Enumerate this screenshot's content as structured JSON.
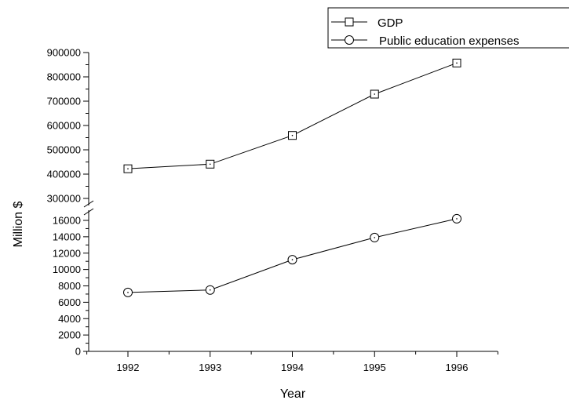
{
  "chart_data": {
    "type": "line",
    "xlabel": "Year",
    "ylabel": "Million $",
    "x": [
      1992,
      1993,
      1994,
      1995,
      1996
    ],
    "x_tick_labels": [
      "1992",
      "1993",
      "1994",
      "1995",
      "1996"
    ],
    "y_axis_break": true,
    "y_upper_segment": {
      "ylim": [
        300000,
        900000
      ],
      "ticks": [
        300000,
        400000,
        500000,
        600000,
        700000,
        800000,
        900000
      ],
      "tick_labels": [
        "300000",
        "400000",
        "500000",
        "600000",
        "700000",
        "800000",
        "900000"
      ]
    },
    "y_lower_segment": {
      "ylim": [
        0,
        16000
      ],
      "ticks": [
        0,
        2000,
        4000,
        6000,
        8000,
        10000,
        12000,
        14000,
        16000
      ],
      "tick_labels": [
        "0",
        "2000",
        "4000",
        "6000",
        "8000",
        "10000",
        "12000",
        "14000",
        "16000"
      ]
    },
    "series": [
      {
        "name": "GDP",
        "marker": "square",
        "values": [
          422000,
          441000,
          559000,
          729000,
          857000
        ]
      },
      {
        "name": "Public education expenses",
        "marker": "circle",
        "values": [
          7200,
          7500,
          11200,
          13900,
          16200
        ]
      }
    ],
    "legend_position": "top-right",
    "grid": false
  }
}
